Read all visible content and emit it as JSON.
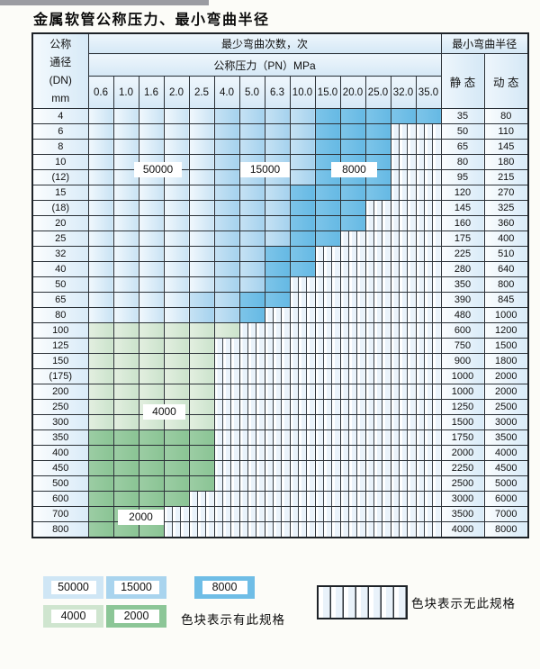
{
  "title": "金属软管公称压力、最小弯曲半径",
  "header": {
    "dn": [
      "公称",
      "通径",
      "(DN)",
      "mm"
    ],
    "bend_cycles": "最少弯曲次数，次",
    "min_radius": "最小弯曲半径",
    "pressure": "公称压力（PN）MPa",
    "static": "静 态",
    "dynamic": "动 态",
    "pressures": [
      "0.6",
      "1.0",
      "1.6",
      "2.0",
      "2.5",
      "4.0",
      "5.0",
      "6.3",
      "10.0",
      "15.0",
      "20.0",
      "25.0",
      "32.0",
      "35.0"
    ]
  },
  "zone_labels": [
    "50000",
    "15000",
    "8000",
    "4000",
    "2000"
  ],
  "rows": [
    {
      "dn": "4",
      "cells": [
        "50k",
        "50k",
        "50k",
        "50k",
        "50k",
        "15k",
        "15k",
        "15k",
        "15k",
        "8k",
        "8k",
        "8k",
        "8k",
        "8k"
      ],
      "static": "35",
      "dynamic": "80"
    },
    {
      "dn": "6",
      "cells": [
        "50k",
        "50k",
        "50k",
        "50k",
        "50k",
        "15k",
        "15k",
        "15k",
        "15k",
        "8k",
        "8k",
        "8k",
        "x",
        "x"
      ],
      "static": "50",
      "dynamic": "110"
    },
    {
      "dn": "8",
      "cells": [
        "50k",
        "50k",
        "50k",
        "50k",
        "50k",
        "15k",
        "15k",
        "15k",
        "15k",
        "8k",
        "8k",
        "8k",
        "x",
        "x"
      ],
      "static": "65",
      "dynamic": "145"
    },
    {
      "dn": "10",
      "cells": [
        "50k",
        "50k",
        "50k",
        "50k",
        "50k",
        "15k",
        "15k",
        "15k",
        "15k",
        "8k",
        "8k",
        "8k",
        "x",
        "x"
      ],
      "static": "80",
      "dynamic": "180"
    },
    {
      "dn": "(12)",
      "cells": [
        "50k",
        "50k",
        "50k",
        "50k",
        "50k",
        "15k",
        "15k",
        "15k",
        "15k",
        "8k",
        "8k",
        "8k",
        "x",
        "x"
      ],
      "static": "95",
      "dynamic": "215"
    },
    {
      "dn": "15",
      "cells": [
        "50k",
        "50k",
        "50k",
        "50k",
        "50k",
        "15k",
        "15k",
        "15k",
        "8k",
        "8k",
        "8k",
        "8k",
        "x",
        "x"
      ],
      "static": "120",
      "dynamic": "270"
    },
    {
      "dn": "(18)",
      "cells": [
        "50k",
        "50k",
        "50k",
        "50k",
        "50k",
        "15k",
        "15k",
        "15k",
        "8k",
        "8k",
        "8k",
        "x",
        "x",
        "x"
      ],
      "static": "145",
      "dynamic": "325"
    },
    {
      "dn": "20",
      "cells": [
        "50k",
        "50k",
        "50k",
        "50k",
        "50k",
        "15k",
        "15k",
        "15k",
        "8k",
        "8k",
        "8k",
        "x",
        "x",
        "x"
      ],
      "static": "160",
      "dynamic": "360"
    },
    {
      "dn": "25",
      "cells": [
        "50k",
        "50k",
        "50k",
        "50k",
        "50k",
        "15k",
        "15k",
        "15k",
        "8k",
        "8k",
        "x",
        "x",
        "x",
        "x"
      ],
      "static": "175",
      "dynamic": "400"
    },
    {
      "dn": "32",
      "cells": [
        "50k",
        "50k",
        "50k",
        "50k",
        "50k",
        "15k",
        "15k",
        "8k",
        "8k",
        "x",
        "x",
        "x",
        "x",
        "x"
      ],
      "static": "225",
      "dynamic": "510"
    },
    {
      "dn": "40",
      "cells": [
        "50k",
        "50k",
        "50k",
        "50k",
        "50k",
        "15k",
        "15k",
        "8k",
        "8k",
        "x",
        "x",
        "x",
        "x",
        "x"
      ],
      "static": "280",
      "dynamic": "640"
    },
    {
      "dn": "50",
      "cells": [
        "50k",
        "50k",
        "50k",
        "50k",
        "50k",
        "15k",
        "15k",
        "8k",
        "x",
        "x",
        "x",
        "x",
        "x",
        "x"
      ],
      "static": "350",
      "dynamic": "800"
    },
    {
      "dn": "65",
      "cells": [
        "50k",
        "50k",
        "50k",
        "50k",
        "15k",
        "15k",
        "8k",
        "8k",
        "x",
        "x",
        "x",
        "x",
        "x",
        "x"
      ],
      "static": "390",
      "dynamic": "845"
    },
    {
      "dn": "80",
      "cells": [
        "50k",
        "50k",
        "50k",
        "50k",
        "15k",
        "15k",
        "8k",
        "x",
        "x",
        "x",
        "x",
        "x",
        "x",
        "x"
      ],
      "static": "480",
      "dynamic": "1000"
    },
    {
      "dn": "100",
      "cells": [
        "4k",
        "4k",
        "4k",
        "4k",
        "4k",
        "4k",
        "x",
        "x",
        "x",
        "x",
        "x",
        "x",
        "x",
        "x"
      ],
      "static": "600",
      "dynamic": "1200"
    },
    {
      "dn": "125",
      "cells": [
        "4k",
        "4k",
        "4k",
        "4k",
        "4k",
        "x",
        "x",
        "x",
        "x",
        "x",
        "x",
        "x",
        "x",
        "x"
      ],
      "static": "750",
      "dynamic": "1500"
    },
    {
      "dn": "150",
      "cells": [
        "4k",
        "4k",
        "4k",
        "4k",
        "4k",
        "x",
        "x",
        "x",
        "x",
        "x",
        "x",
        "x",
        "x",
        "x"
      ],
      "static": "900",
      "dynamic": "1800"
    },
    {
      "dn": "(175)",
      "cells": [
        "4k",
        "4k",
        "4k",
        "4k",
        "4k",
        "x",
        "x",
        "x",
        "x",
        "x",
        "x",
        "x",
        "x",
        "x"
      ],
      "static": "1000",
      "dynamic": "2000"
    },
    {
      "dn": "200",
      "cells": [
        "4k",
        "4k",
        "4k",
        "4k",
        "4k",
        "x",
        "x",
        "x",
        "x",
        "x",
        "x",
        "x",
        "x",
        "x"
      ],
      "static": "1000",
      "dynamic": "2000"
    },
    {
      "dn": "250",
      "cells": [
        "4k",
        "4k",
        "4k",
        "4k",
        "4k",
        "x",
        "x",
        "x",
        "x",
        "x",
        "x",
        "x",
        "x",
        "x"
      ],
      "static": "1250",
      "dynamic": "2500"
    },
    {
      "dn": "300",
      "cells": [
        "4k",
        "4k",
        "4k",
        "4k",
        "4k",
        "x",
        "x",
        "x",
        "x",
        "x",
        "x",
        "x",
        "x",
        "x"
      ],
      "static": "1500",
      "dynamic": "3000"
    },
    {
      "dn": "350",
      "cells": [
        "2k",
        "2k",
        "2k",
        "2k",
        "2k",
        "x",
        "x",
        "x",
        "x",
        "x",
        "x",
        "x",
        "x",
        "x"
      ],
      "static": "1750",
      "dynamic": "3500"
    },
    {
      "dn": "400",
      "cells": [
        "2k",
        "2k",
        "2k",
        "2k",
        "2k",
        "x",
        "x",
        "x",
        "x",
        "x",
        "x",
        "x",
        "x",
        "x"
      ],
      "static": "2000",
      "dynamic": "4000"
    },
    {
      "dn": "450",
      "cells": [
        "2k",
        "2k",
        "2k",
        "2k",
        "2k",
        "x",
        "x",
        "x",
        "x",
        "x",
        "x",
        "x",
        "x",
        "x"
      ],
      "static": "2250",
      "dynamic": "4500"
    },
    {
      "dn": "500",
      "cells": [
        "2k",
        "2k",
        "2k",
        "2k",
        "2k",
        "x",
        "x",
        "x",
        "x",
        "x",
        "x",
        "x",
        "x",
        "x"
      ],
      "static": "2500",
      "dynamic": "5000"
    },
    {
      "dn": "600",
      "cells": [
        "2k",
        "2k",
        "2k",
        "2k",
        "x",
        "x",
        "x",
        "x",
        "x",
        "x",
        "x",
        "x",
        "x",
        "x"
      ],
      "static": "3000",
      "dynamic": "6000"
    },
    {
      "dn": "700",
      "cells": [
        "2k",
        "2k",
        "2k",
        "x",
        "x",
        "x",
        "x",
        "x",
        "x",
        "x",
        "x",
        "x",
        "x",
        "x"
      ],
      "static": "3500",
      "dynamic": "7000"
    },
    {
      "dn": "800",
      "cells": [
        "2k",
        "2k",
        "2k",
        "x",
        "x",
        "x",
        "x",
        "x",
        "x",
        "x",
        "x",
        "x",
        "x",
        "x"
      ],
      "static": "4000",
      "dynamic": "8000"
    }
  ],
  "legend": {
    "items": [
      {
        "value": "50000",
        "color": "#cfe6f5"
      },
      {
        "value": "15000",
        "color": "#a9d4ee"
      },
      {
        "value": "8000",
        "color": "#6fbde6"
      },
      {
        "value": "4000",
        "color": "#cfe5cf"
      },
      {
        "value": "2000",
        "color": "#8cc697"
      }
    ],
    "has_spec_text": "色块表示有此规格",
    "no_spec_text": "色块表示无此规格"
  }
}
